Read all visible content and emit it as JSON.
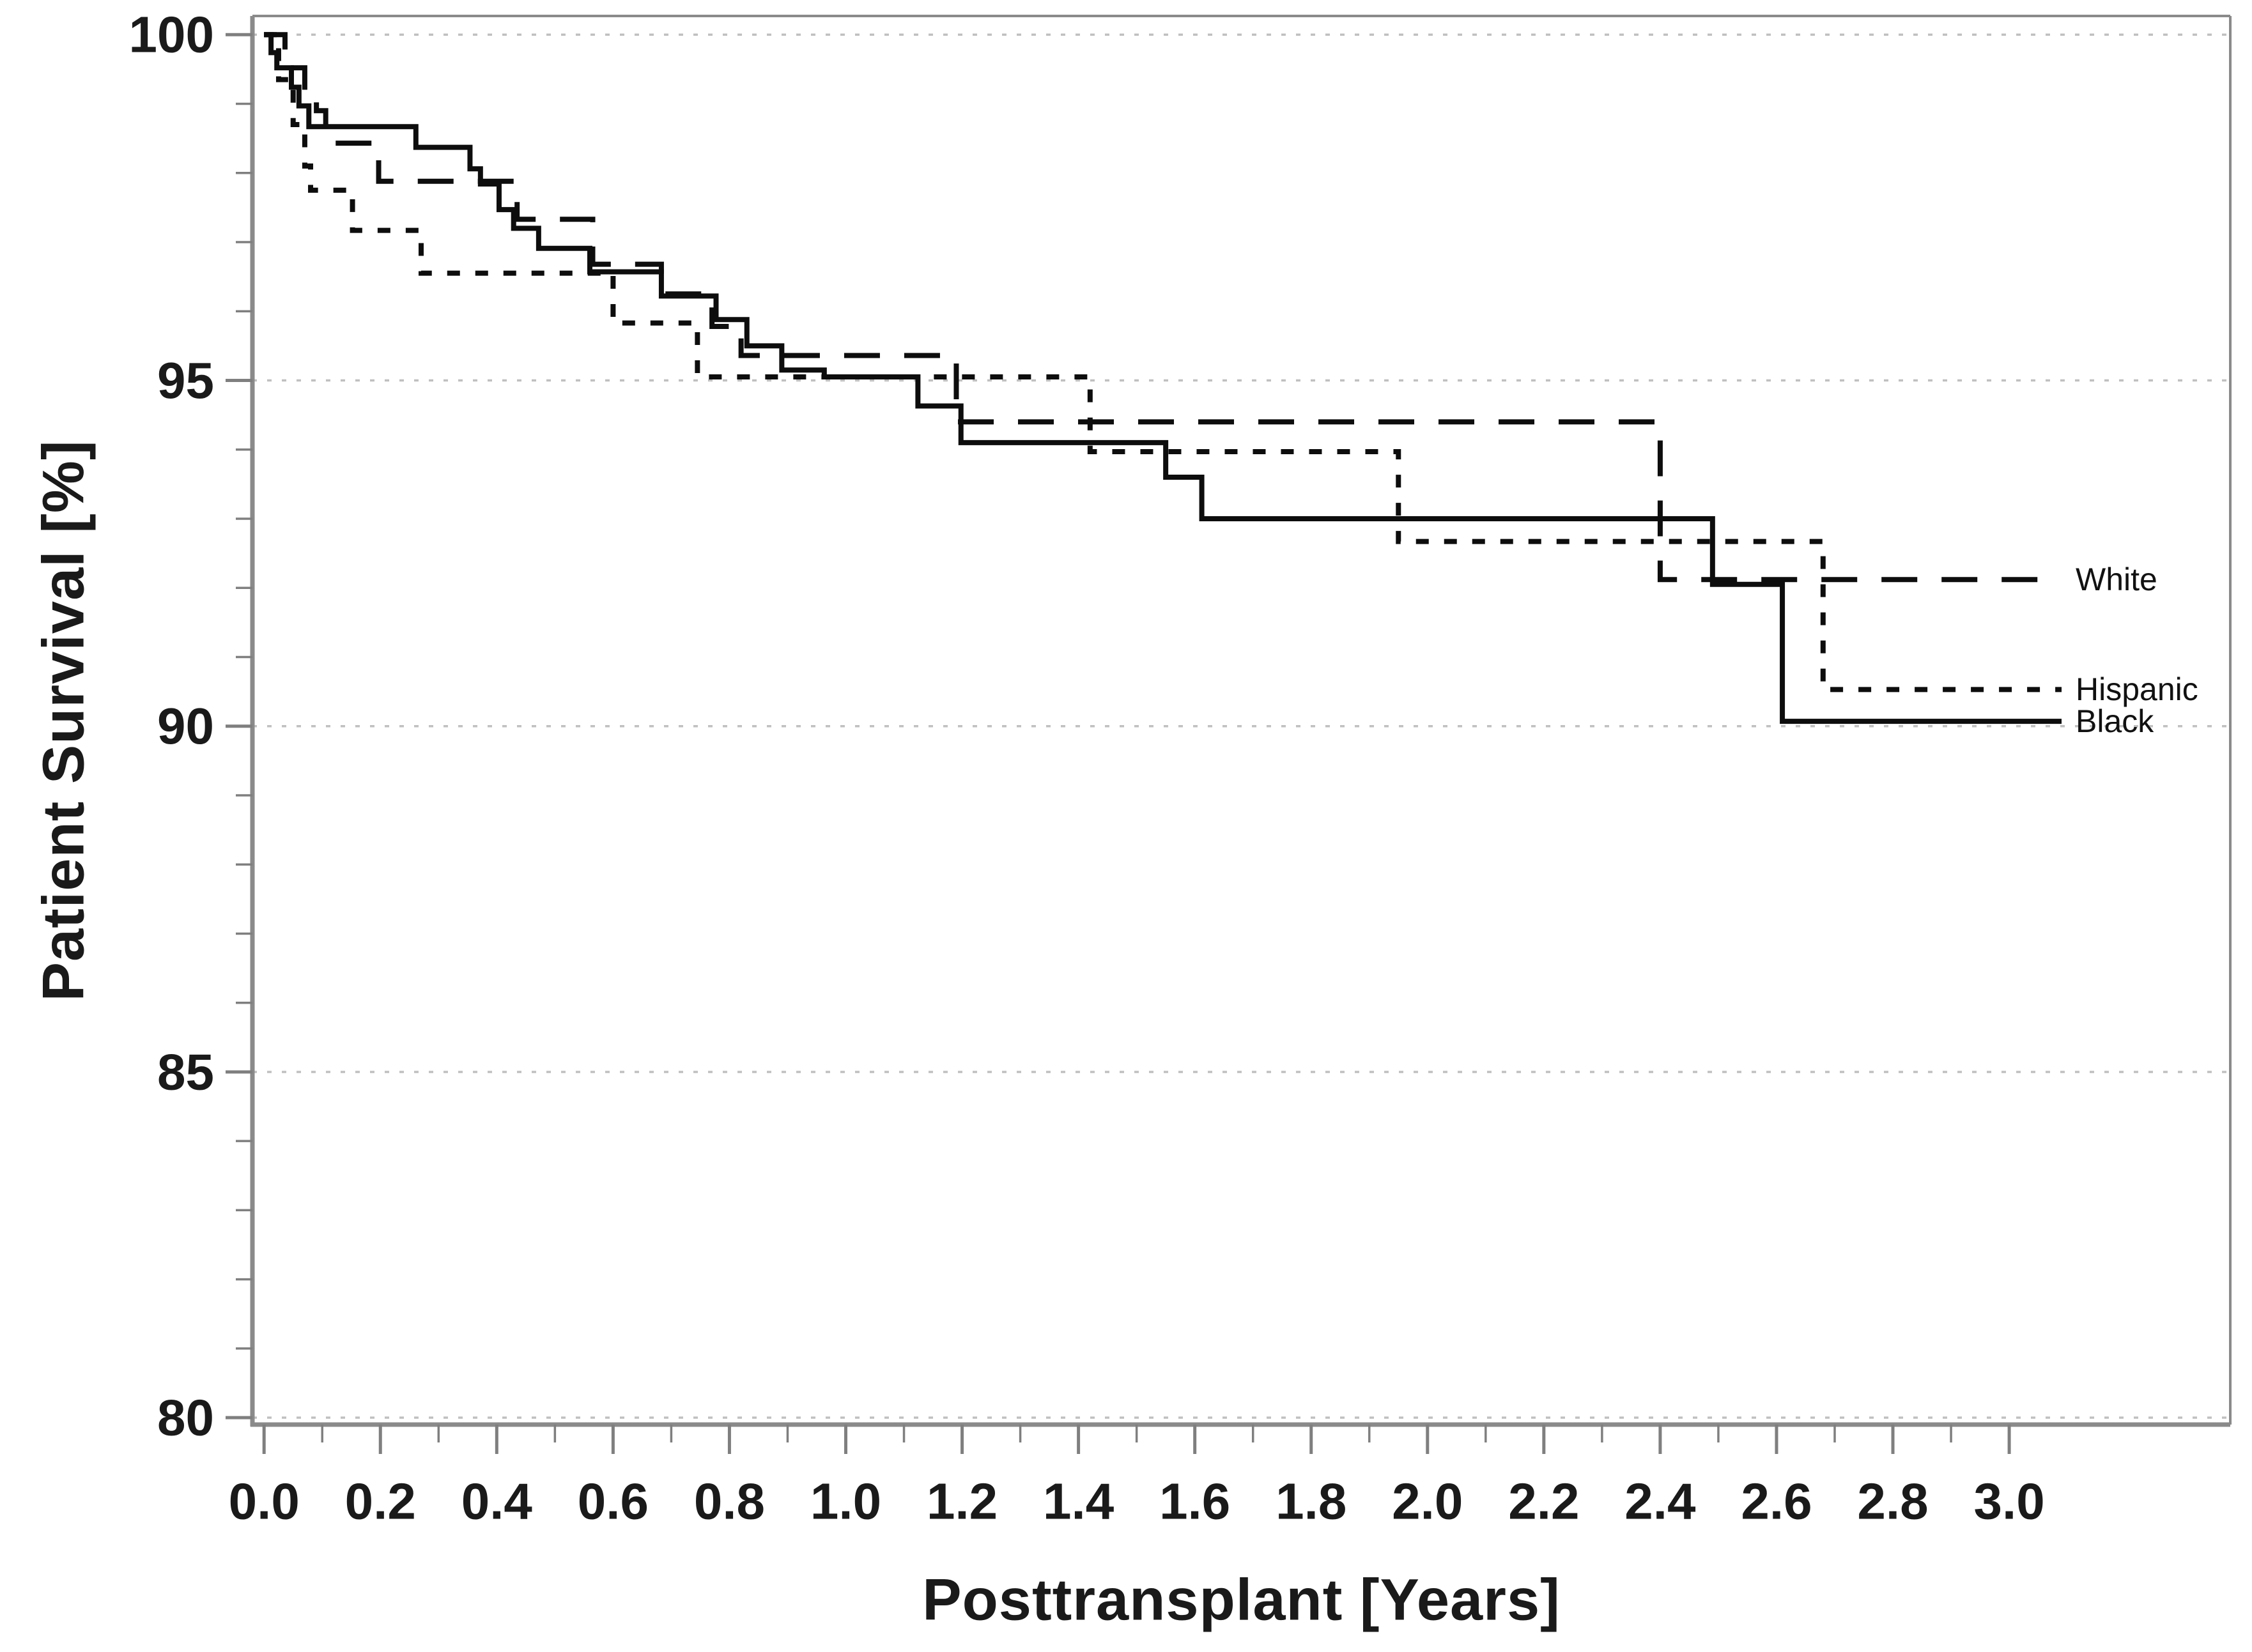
{
  "figure": {
    "background": "#ffffff",
    "frame_color": "#8a8a8a",
    "tick_color": "#7f7f7f",
    "grid_color": "#c0c0c0",
    "text_color": "#1a1a1a",
    "curve_color": "#0d0d0d"
  },
  "chart_data": {
    "type": "line",
    "subtype": "kaplan-meier-step-curves",
    "title": "",
    "xlabel": "Posttransplant [Years]",
    "ylabel": "Patient Survival [%]",
    "xlim": [
      -0.02,
      3.38
    ],
    "ylim": [
      79.9,
      100.27
    ],
    "grid": "dotted-horizontal",
    "gridlines_at": [
      80,
      85,
      90,
      95,
      100
    ],
    "x_ticks_major": [
      0.0,
      0.2,
      0.4,
      0.6,
      0.8,
      1.0,
      1.2,
      1.4,
      1.6,
      1.8,
      2.0,
      2.2,
      2.4,
      2.6,
      2.8,
      3.0
    ],
    "x_ticks_minor": [
      0.1,
      0.3,
      0.5,
      0.7,
      0.9,
      1.1,
      1.3,
      1.5,
      1.7,
      1.9,
      2.1,
      2.3,
      2.5,
      2.7,
      2.9
    ],
    "y_ticks_major": [
      80,
      85,
      90,
      95,
      100
    ],
    "y_ticks_minor": [
      81,
      82,
      83,
      84,
      86,
      87,
      88,
      89,
      91,
      92,
      93,
      94,
      96,
      97,
      98,
      99
    ],
    "x_tick_label_format": "one-decimal",
    "legend_position": "right-end-of-curves",
    "end_time": 3.09,
    "series": [
      {
        "name": "White",
        "line_style": "long-dash",
        "final_value": 92.12,
        "steps": [
          [
            0,
            100
          ],
          [
            0.036,
            99.52
          ],
          [
            0.07,
            99.2
          ],
          [
            0.09,
            98.9
          ],
          [
            0.106,
            98.43
          ],
          [
            0.197,
            97.88
          ],
          [
            0.435,
            97.33
          ],
          [
            0.565,
            96.68
          ],
          [
            0.683,
            96.25
          ],
          [
            0.77,
            95.78
          ],
          [
            0.82,
            95.36
          ],
          [
            1.19,
            94.4
          ],
          [
            2.4,
            92.12
          ]
        ]
      },
      {
        "name": "Hispanic",
        "line_style": "short-dash",
        "final_value": 90.53,
        "steps": [
          [
            0,
            100
          ],
          [
            0.025,
            99.35
          ],
          [
            0.05,
            98.7
          ],
          [
            0.07,
            98.1
          ],
          [
            0.08,
            97.75
          ],
          [
            0.152,
            97.17
          ],
          [
            0.27,
            96.55
          ],
          [
            0.6,
            95.83
          ],
          [
            0.745,
            95.05
          ],
          [
            1.42,
            93.97
          ],
          [
            1.95,
            92.67
          ],
          [
            2.68,
            90.53
          ]
        ]
      },
      {
        "name": "Black",
        "line_style": "solid",
        "final_value": 90.07,
        "steps": [
          [
            0,
            100
          ],
          [
            0.012,
            99.74
          ],
          [
            0.022,
            99.52
          ],
          [
            0.047,
            99.24
          ],
          [
            0.06,
            98.97
          ],
          [
            0.077,
            98.67
          ],
          [
            0.261,
            98.37
          ],
          [
            0.354,
            98.06
          ],
          [
            0.372,
            97.84
          ],
          [
            0.404,
            97.47
          ],
          [
            0.429,
            97.2
          ],
          [
            0.472,
            96.91
          ],
          [
            0.56,
            96.57
          ],
          [
            0.683,
            96.22
          ],
          [
            0.777,
            95.88
          ],
          [
            0.83,
            95.5
          ],
          [
            0.89,
            95.15
          ],
          [
            0.963,
            95.05
          ],
          [
            1.124,
            94.63
          ],
          [
            1.198,
            94.1
          ],
          [
            1.55,
            93.6
          ],
          [
            1.612,
            93.0
          ],
          [
            2.49,
            92.05
          ],
          [
            2.61,
            90.07
          ]
        ]
      }
    ]
  }
}
